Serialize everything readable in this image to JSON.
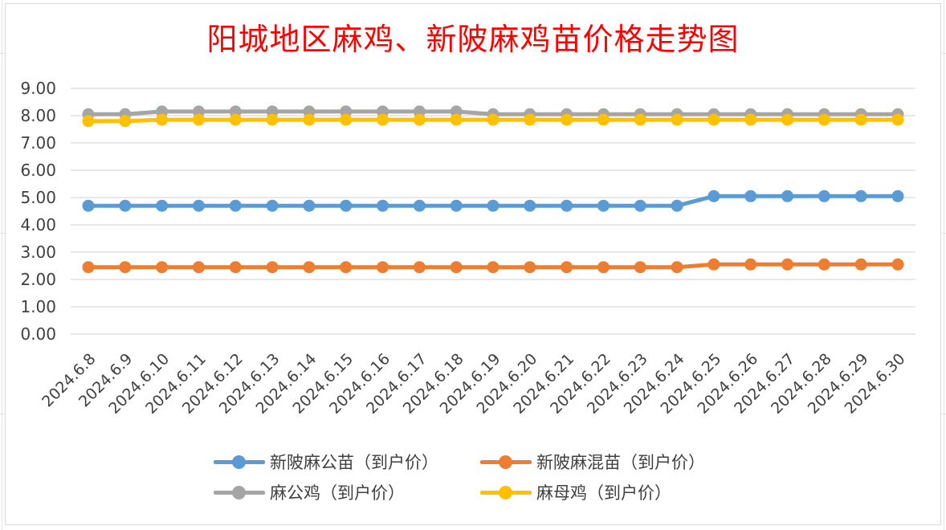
{
  "chart_data": {
    "type": "line",
    "title": "阳城地区麻鸡、新陂麻鸡苗价格走势图",
    "xlabel": "",
    "ylabel": "",
    "ylim": [
      0,
      9
    ],
    "yticks": [
      "0.00",
      "1.00",
      "2.00",
      "3.00",
      "4.00",
      "5.00",
      "6.00",
      "7.00",
      "8.00",
      "9.00"
    ],
    "grid": true,
    "legend_position": "bottom",
    "categories": [
      "2024.6.8",
      "2024.6.9",
      "2024.6.10",
      "2024.6.11",
      "2024.6.12",
      "2024.6.13",
      "2024.6.14",
      "2024.6.15",
      "2024.6.16",
      "2024.6.17",
      "2024.6.18",
      "2024.6.19",
      "2024.6.20",
      "2024.6.21",
      "2024.6.22",
      "2024.6.23",
      "2024.6.24",
      "2024.6.25",
      "2024.6.26",
      "2024.6.27",
      "2024.6.28",
      "2024.6.29",
      "2024.6.30"
    ],
    "series": [
      {
        "name": "新陂麻公苗（到户价）",
        "color": "#5b9bd5",
        "values": [
          4.7,
          4.7,
          4.7,
          4.7,
          4.7,
          4.7,
          4.7,
          4.7,
          4.7,
          4.7,
          4.7,
          4.7,
          4.7,
          4.7,
          4.7,
          4.7,
          4.7,
          5.05,
          5.05,
          5.05,
          5.05,
          5.05,
          5.05
        ]
      },
      {
        "name": "新陂麻混苗（到户价）",
        "color": "#ed7d31",
        "values": [
          2.45,
          2.45,
          2.45,
          2.45,
          2.45,
          2.45,
          2.45,
          2.45,
          2.45,
          2.45,
          2.45,
          2.45,
          2.45,
          2.45,
          2.45,
          2.45,
          2.45,
          2.55,
          2.55,
          2.55,
          2.55,
          2.55,
          2.55
        ]
      },
      {
        "name": "麻公鸡（到户价）",
        "color": "#a5a5a5",
        "values": [
          8.05,
          8.05,
          8.15,
          8.15,
          8.15,
          8.15,
          8.15,
          8.15,
          8.15,
          8.15,
          8.15,
          8.05,
          8.05,
          8.05,
          8.05,
          8.05,
          8.05,
          8.05,
          8.05,
          8.05,
          8.05,
          8.05,
          8.05
        ]
      },
      {
        "name": "麻母鸡（到户价）",
        "color": "#ffc000",
        "values": [
          7.8,
          7.8,
          7.85,
          7.85,
          7.85,
          7.85,
          7.85,
          7.85,
          7.85,
          7.85,
          7.85,
          7.85,
          7.85,
          7.85,
          7.85,
          7.85,
          7.85,
          7.85,
          7.85,
          7.85,
          7.85,
          7.85,
          7.85
        ]
      }
    ]
  }
}
